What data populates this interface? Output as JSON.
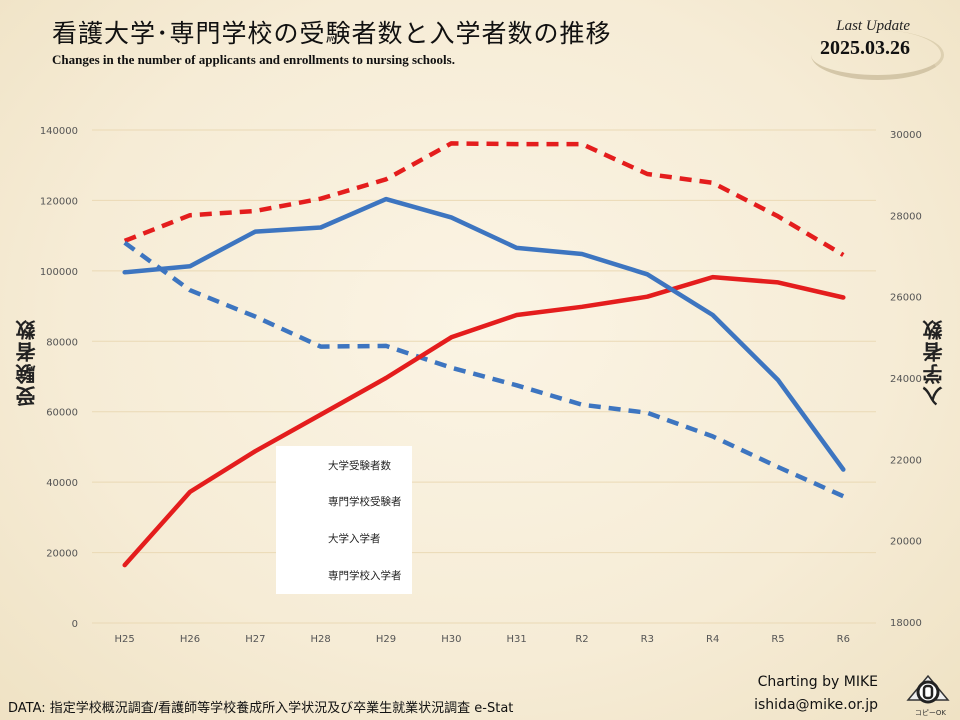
{
  "header": {
    "title": "看護大学･専門学校の受験者数と入学者数の推移",
    "subtitle": "Changes in the number of applicants and enrollments to nursing schools.",
    "update_label": "Last Update",
    "update_date": "2025.03.26"
  },
  "footer": {
    "data_source": "DATA: 指定学校概況調査/看護師等学校養成所入学状況及び卒業生就業状況調査 e-Stat",
    "credit_line1": "Charting by MIKE",
    "credit_line2": "ishida@mike.or.jp",
    "badge_text": "コピーOK"
  },
  "chart_data": {
    "type": "line",
    "categories": [
      "H25",
      "H26",
      "H27",
      "H28",
      "H29",
      "H30",
      "H31",
      "R2",
      "R3",
      "R4",
      "R5",
      "R6"
    ],
    "left_axis": {
      "label": "受験者数",
      "ylim": [
        0,
        140000
      ],
      "ticks": [
        "0",
        "20000",
        "40000",
        "60000",
        "80000",
        "100000",
        "120000",
        "140000"
      ]
    },
    "right_axis": {
      "label": "入学者数",
      "ylim": [
        18000,
        30000
      ],
      "ticks": [
        "18000",
        "20000",
        "22000",
        "24000",
        "26000",
        "28000",
        "30000"
      ]
    },
    "grid": true,
    "legend_placement": "lower-center",
    "series": [
      {
        "name": "大学受験者数",
        "axis": "left",
        "color": "#e41d1d",
        "dash": true,
        "values": [
          108500,
          115800,
          117000,
          120500,
          126000,
          136200,
          136000,
          136000,
          127500,
          125000,
          115500,
          104500
        ]
      },
      {
        "name": "専門学校受験者",
        "axis": "left",
        "color": "#3d75c0",
        "dash": true,
        "values": [
          108000,
          94500,
          87000,
          78500,
          78700,
          72500,
          67500,
          62000,
          59700,
          53000,
          44300,
          36000
        ]
      },
      {
        "name": "大学入学者",
        "axis": "right",
        "color": "#e41d1d",
        "dash": false,
        "values": [
          19400,
          21200,
          22200,
          23100,
          24000,
          25000,
          25550,
          25750,
          26000,
          26480,
          26350,
          25980
        ]
      },
      {
        "name": "専門学校入学者",
        "axis": "right",
        "color": "#3d75c0",
        "dash": false,
        "values": [
          26600,
          26750,
          27600,
          27700,
          28400,
          27950,
          27200,
          27050,
          26550,
          25550,
          23950,
          21750
        ]
      }
    ]
  }
}
